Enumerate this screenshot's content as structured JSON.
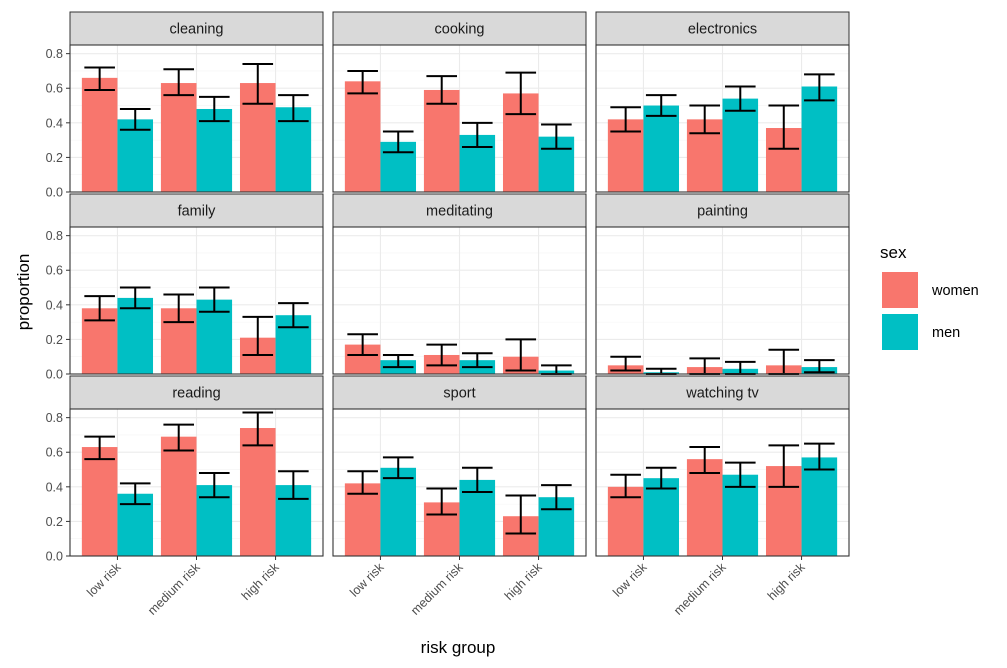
{
  "chart_data": {
    "type": "bar",
    "facet_by": "activity",
    "xlabel": "risk group",
    "ylabel": "proportion",
    "ylim": [
      0,
      0.85
    ],
    "y_ticks": [
      "0.0",
      "0.2",
      "0.4",
      "0.6",
      "0.8"
    ],
    "categories": [
      "low risk",
      "medium risk",
      "high risk"
    ],
    "legend": {
      "title": "sex",
      "position": "right",
      "entries": [
        {
          "name": "women",
          "color": "#F8766D"
        },
        {
          "name": "men",
          "color": "#00BFC4"
        }
      ]
    },
    "grid": true,
    "panels": [
      {
        "title": "cleaning",
        "series": [
          {
            "name": "women",
            "values": [
              0.66,
              0.63,
              0.63
            ],
            "lower": [
              0.59,
              0.56,
              0.51
            ],
            "upper": [
              0.72,
              0.71,
              0.74
            ]
          },
          {
            "name": "men",
            "values": [
              0.42,
              0.48,
              0.49
            ],
            "lower": [
              0.36,
              0.41,
              0.41
            ],
            "upper": [
              0.48,
              0.55,
              0.56
            ]
          }
        ]
      },
      {
        "title": "cooking",
        "series": [
          {
            "name": "women",
            "values": [
              0.64,
              0.59,
              0.57
            ],
            "lower": [
              0.57,
              0.51,
              0.45
            ],
            "upper": [
              0.7,
              0.67,
              0.69
            ]
          },
          {
            "name": "men",
            "values": [
              0.29,
              0.33,
              0.32
            ],
            "lower": [
              0.23,
              0.26,
              0.25
            ],
            "upper": [
              0.35,
              0.4,
              0.39
            ]
          }
        ]
      },
      {
        "title": "electronics",
        "series": [
          {
            "name": "women",
            "values": [
              0.42,
              0.42,
              0.37
            ],
            "lower": [
              0.35,
              0.34,
              0.25
            ],
            "upper": [
              0.49,
              0.5,
              0.5
            ]
          },
          {
            "name": "men",
            "values": [
              0.5,
              0.54,
              0.61
            ],
            "lower": [
              0.44,
              0.47,
              0.53
            ],
            "upper": [
              0.56,
              0.61,
              0.68
            ]
          }
        ]
      },
      {
        "title": "family",
        "series": [
          {
            "name": "women",
            "values": [
              0.38,
              0.38,
              0.21
            ],
            "lower": [
              0.31,
              0.3,
              0.11
            ],
            "upper": [
              0.45,
              0.46,
              0.33
            ]
          },
          {
            "name": "men",
            "values": [
              0.44,
              0.43,
              0.34
            ],
            "lower": [
              0.38,
              0.36,
              0.27
            ],
            "upper": [
              0.5,
              0.5,
              0.41
            ]
          }
        ]
      },
      {
        "title": "meditating",
        "series": [
          {
            "name": "women",
            "values": [
              0.17,
              0.11,
              0.1
            ],
            "lower": [
              0.11,
              0.05,
              0.02
            ],
            "upper": [
              0.23,
              0.17,
              0.2
            ]
          },
          {
            "name": "men",
            "values": [
              0.08,
              0.08,
              0.02
            ],
            "lower": [
              0.04,
              0.04,
              0.0
            ],
            "upper": [
              0.11,
              0.12,
              0.05
            ]
          }
        ]
      },
      {
        "title": "painting",
        "series": [
          {
            "name": "women",
            "values": [
              0.05,
              0.04,
              0.05
            ],
            "lower": [
              0.02,
              0.0,
              0.0
            ],
            "upper": [
              0.1,
              0.09,
              0.14
            ]
          },
          {
            "name": "men",
            "values": [
              0.01,
              0.03,
              0.04
            ],
            "lower": [
              0.0,
              0.0,
              0.01
            ],
            "upper": [
              0.03,
              0.07,
              0.08
            ]
          }
        ]
      },
      {
        "title": "reading",
        "series": [
          {
            "name": "women",
            "values": [
              0.63,
              0.69,
              0.74
            ],
            "lower": [
              0.56,
              0.61,
              0.64
            ],
            "upper": [
              0.69,
              0.76,
              0.83
            ]
          },
          {
            "name": "men",
            "values": [
              0.36,
              0.41,
              0.41
            ],
            "lower": [
              0.3,
              0.34,
              0.33
            ],
            "upper": [
              0.42,
              0.48,
              0.49
            ]
          }
        ]
      },
      {
        "title": "sport",
        "series": [
          {
            "name": "women",
            "values": [
              0.42,
              0.31,
              0.23
            ],
            "lower": [
              0.36,
              0.24,
              0.13
            ],
            "upper": [
              0.49,
              0.39,
              0.35
            ]
          },
          {
            "name": "men",
            "values": [
              0.51,
              0.44,
              0.34
            ],
            "lower": [
              0.45,
              0.37,
              0.27
            ],
            "upper": [
              0.57,
              0.51,
              0.41
            ]
          }
        ]
      },
      {
        "title": "watching tv",
        "series": [
          {
            "name": "women",
            "values": [
              0.4,
              0.56,
              0.52
            ],
            "lower": [
              0.34,
              0.48,
              0.4
            ],
            "upper": [
              0.47,
              0.63,
              0.64
            ]
          },
          {
            "name": "men",
            "values": [
              0.45,
              0.47,
              0.57
            ],
            "lower": [
              0.39,
              0.4,
              0.5
            ],
            "upper": [
              0.51,
              0.54,
              0.65
            ]
          }
        ]
      }
    ]
  }
}
